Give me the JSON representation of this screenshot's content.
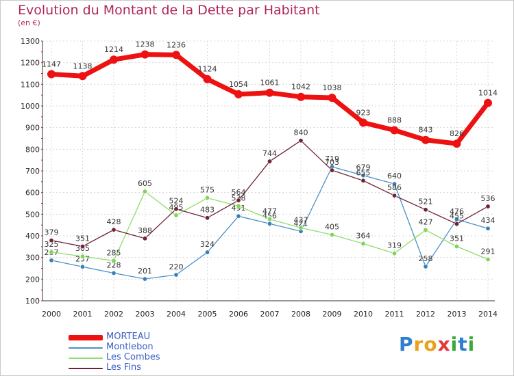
{
  "page": {
    "title": "Evolution du Montant de la Dette par Habitant",
    "subtitle": "(en €)"
  },
  "chart_data": {
    "type": "line",
    "title": "Evolution du Montant de la Dette par Habitant",
    "subtitle": "(en €)",
    "xlabel": "",
    "ylabel": "",
    "x": [
      2000,
      2001,
      2002,
      2003,
      2004,
      2005,
      2006,
      2007,
      2008,
      2009,
      2010,
      2011,
      2012,
      2013,
      2014
    ],
    "ylim": [
      100,
      1300
    ],
    "yticks": [
      100,
      200,
      300,
      400,
      500,
      600,
      700,
      800,
      900,
      1000,
      1100,
      1200,
      1300
    ],
    "grid": true,
    "legend_position": "bottom-left",
    "series": [
      {
        "name": "Montlebon",
        "color": "#4a90c8",
        "marker": "#3a7fb8",
        "values": [
          287,
          257,
          228,
          201,
          220,
          324,
          491,
          456,
          421,
          719,
          679,
          640,
          258,
          476,
          434
        ]
      },
      {
        "name": "Les Combes",
        "color": "#8fdc6a",
        "marker": "#7fd45a",
        "values": [
          325,
          305,
          285,
          605,
          495,
          575,
          538,
          477,
          437,
          405,
          364,
          319,
          427,
          351,
          291
        ]
      },
      {
        "name": "Les Fins",
        "color": "#6e2232",
        "marker": "#6e2232",
        "values": [
          379,
          351,
          428,
          388,
          524,
          483,
          564,
          744,
          840,
          703,
          655,
          586,
          521,
          455,
          536
        ]
      },
      {
        "name": "MORTEAU",
        "color": "#ee1111",
        "marker": "#ee1111",
        "values": [
          1147,
          1138,
          1214,
          1238,
          1236,
          1124,
          1054,
          1061,
          1042,
          1038,
          923,
          888,
          843,
          826,
          1014
        ]
      }
    ]
  },
  "legend": {
    "items": [
      {
        "label": "MORTEAU",
        "color": "#ee1111"
      },
      {
        "label": "Montlebon",
        "color": "#4a90c8"
      },
      {
        "label": "Les Combes",
        "color": "#8fdc6a"
      },
      {
        "label": "Les Fins",
        "color": "#6e2232"
      }
    ]
  },
  "logo": {
    "text": "Proxiti",
    "letters": [
      {
        "ch": "P",
        "color": "#2f7fd0"
      },
      {
        "ch": "r",
        "color": "#e8a21a"
      },
      {
        "ch": "o",
        "color": "#e8a21a"
      },
      {
        "ch": "x",
        "color": "#e23a3a"
      },
      {
        "ch": "i",
        "color": "#3aa83a"
      },
      {
        "ch": "t",
        "color": "#2f7fd0"
      },
      {
        "ch": "i",
        "color": "#3aa83a"
      }
    ]
  }
}
